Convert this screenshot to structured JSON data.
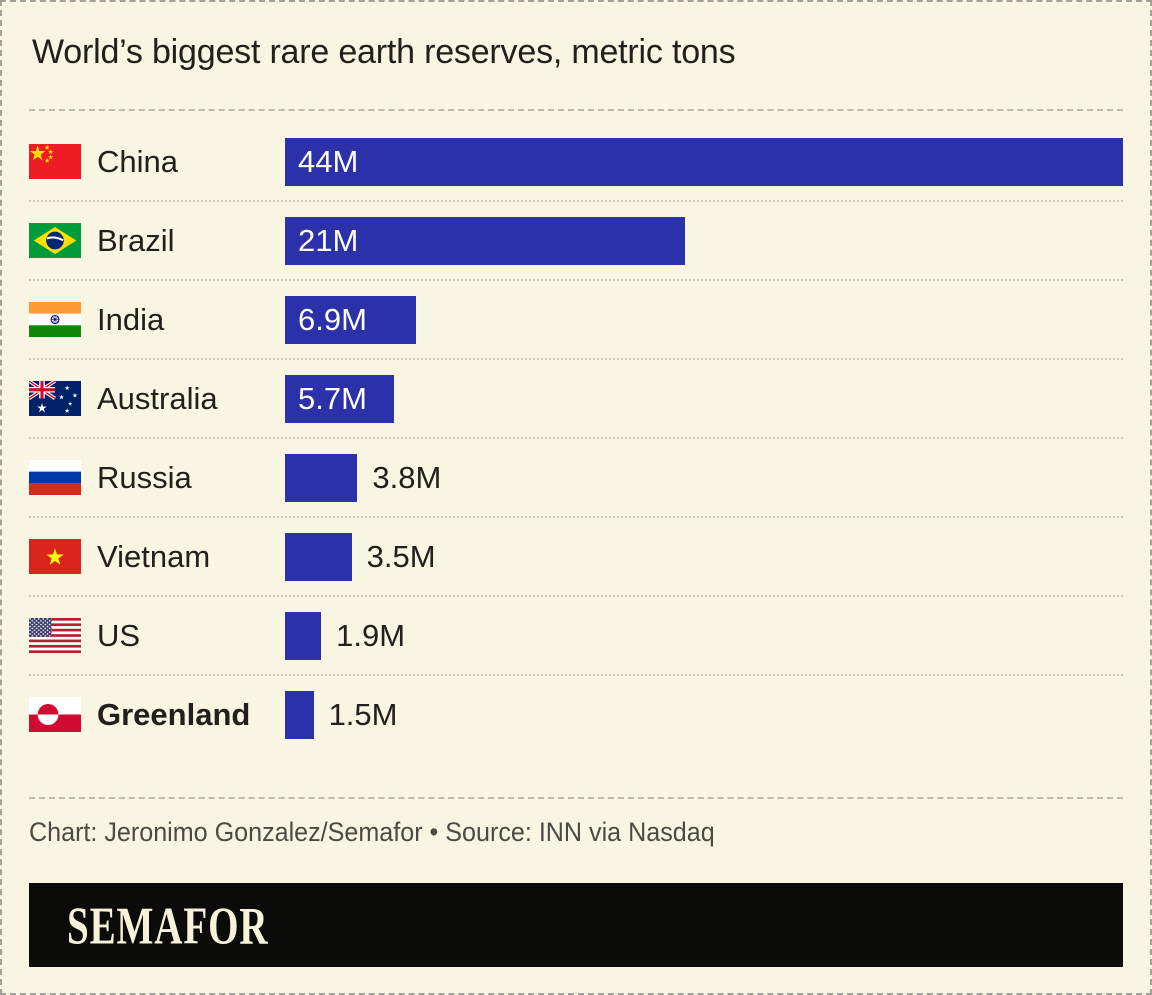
{
  "title": "World’s biggest rare earth reserves, metric tons",
  "credit": "Chart: Jeronimo Gonzalez/Semafor • Source: INN via Nasdaq",
  "brand": {
    "wordmark": "SEMAFOR"
  },
  "colors": {
    "background": "#f8f6e3",
    "bar": "#2b31a9",
    "bar_label_inside": "#fdfdf6",
    "text": "#21201c",
    "credit_text": "#4c4b43",
    "banner_background": "#0b0b09",
    "banner_text": "#f7f2da"
  },
  "chart_data": {
    "type": "bar",
    "orientation": "horizontal",
    "title": "World’s biggest rare earth reserves, metric tons",
    "unit": "metric tons",
    "categories": [
      "China",
      "Brazil",
      "India",
      "Australia",
      "Russia",
      "Vietnam",
      "US",
      "Greenland"
    ],
    "values": [
      44000000,
      21000000,
      6900000,
      5700000,
      3800000,
      3500000,
      1900000,
      1500000
    ],
    "xmax_m": 44,
    "grid": false,
    "legend": false,
    "rows": [
      {
        "country": "China",
        "flag_icon": "china-flag-icon",
        "value_m": 44,
        "value_label": "44M",
        "bold": false
      },
      {
        "country": "Brazil",
        "flag_icon": "brazil-flag-icon",
        "value_m": 21,
        "value_label": "21M",
        "bold": false
      },
      {
        "country": "India",
        "flag_icon": "india-flag-icon",
        "value_m": 6.9,
        "value_label": "6.9M",
        "bold": false
      },
      {
        "country": "Australia",
        "flag_icon": "australia-flag-icon",
        "value_m": 5.7,
        "value_label": "5.7M",
        "bold": false
      },
      {
        "country": "Russia",
        "flag_icon": "russia-flag-icon",
        "value_m": 3.8,
        "value_label": "3.8M",
        "bold": false
      },
      {
        "country": "Vietnam",
        "flag_icon": "vietnam-flag-icon",
        "value_m": 3.5,
        "value_label": "3.5M",
        "bold": false
      },
      {
        "country": "US",
        "flag_icon": "us-flag-icon",
        "value_m": 1.9,
        "value_label": "1.9M",
        "bold": false
      },
      {
        "country": "Greenland",
        "flag_icon": "greenland-flag-icon",
        "value_m": 1.5,
        "value_label": "1.5M",
        "bold": true
      }
    ]
  }
}
